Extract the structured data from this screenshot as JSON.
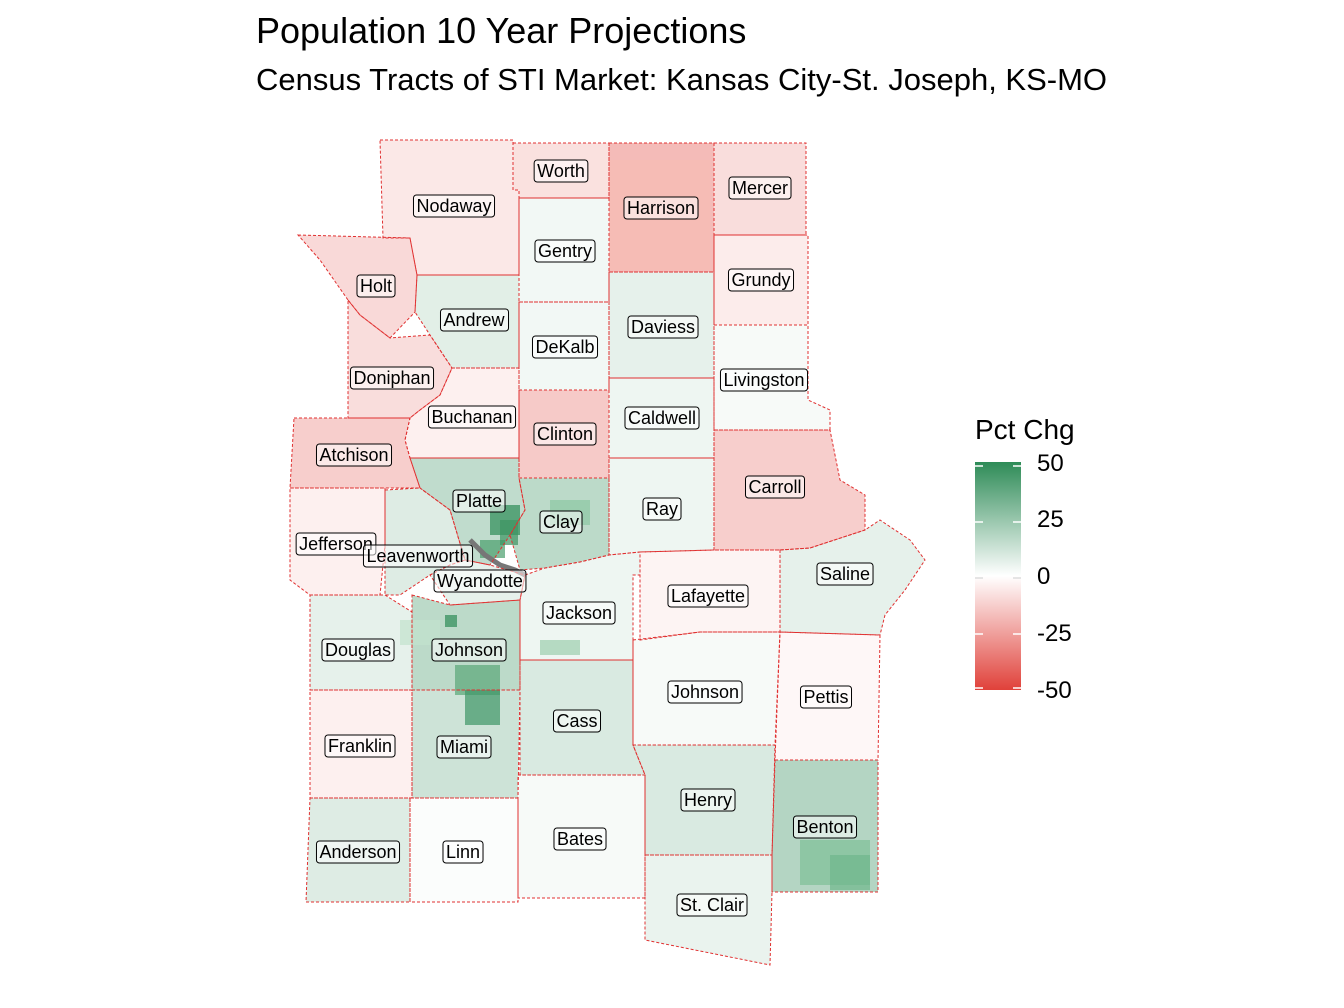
{
  "title": "Population 10 Year Projections",
  "subtitle": "Census Tracts of STI Market: Kansas City-St. Joseph, KS-MO",
  "legend": {
    "title": "Pct Chg",
    "ticks": [
      "50",
      "25",
      "0",
      "-25",
      "-50"
    ],
    "colors": {
      "high": "#2e8b57",
      "mid": "#ffffff",
      "low": "#e0413a"
    }
  },
  "counties": [
    {
      "name": "Worth",
      "pct": -8
    },
    {
      "name": "Nodaway",
      "pct": -6
    },
    {
      "name": "Harrison",
      "pct": -18
    },
    {
      "name": "Mercer",
      "pct": -9
    },
    {
      "name": "Gentry",
      "pct": 3
    },
    {
      "name": "Holt",
      "pct": -10
    },
    {
      "name": "Grundy",
      "pct": -5
    },
    {
      "name": "Andrew",
      "pct": 7
    },
    {
      "name": "Daviess",
      "pct": 6
    },
    {
      "name": "DeKalb",
      "pct": 3
    },
    {
      "name": "Doniphan",
      "pct": -9
    },
    {
      "name": "Livingston",
      "pct": 2
    },
    {
      "name": "Buchanan",
      "pct": -4
    },
    {
      "name": "Caldwell",
      "pct": 4
    },
    {
      "name": "Clinton",
      "pct": -14
    },
    {
      "name": "Atchison",
      "pct": -13
    },
    {
      "name": "Carroll",
      "pct": -13
    },
    {
      "name": "Platte",
      "pct": 15
    },
    {
      "name": "Clay",
      "pct": 16
    },
    {
      "name": "Ray",
      "pct": 4
    },
    {
      "name": "Jefferson",
      "pct": -4
    },
    {
      "name": "Leavenworth",
      "pct": 8
    },
    {
      "name": "Wyandotte",
      "pct": 6
    },
    {
      "name": "Saline",
      "pct": 6
    },
    {
      "name": "Lafayette",
      "pct": -3
    },
    {
      "name": "Jackson",
      "pct": 4
    },
    {
      "name": "Douglas",
      "pct": 6
    },
    {
      "name": "Johnson",
      "pct": 16
    },
    {
      "name": "Johnson",
      "pct": 2
    },
    {
      "name": "Pettis",
      "pct": -2
    },
    {
      "name": "Cass",
      "pct": 9
    },
    {
      "name": "Franklin",
      "pct": -4
    },
    {
      "name": "Miami",
      "pct": 12
    },
    {
      "name": "Henry",
      "pct": 9
    },
    {
      "name": "Benton",
      "pct": 18
    },
    {
      "name": "Bates",
      "pct": 2
    },
    {
      "name": "Anderson",
      "pct": 8
    },
    {
      "name": "Linn",
      "pct": 1
    },
    {
      "name": "St. Clair",
      "pct": 5
    }
  ]
}
